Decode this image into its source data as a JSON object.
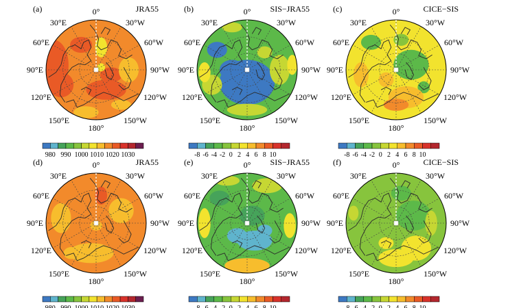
{
  "colors": {
    "scale": [
      "#3d79c2",
      "#5fb4cd",
      "#46a35a",
      "#5cb949",
      "#87c43d",
      "#c6d733",
      "#f2e32e",
      "#f7bd2d",
      "#f28a2b",
      "#e95a26",
      "#d8322b",
      "#b3272e",
      "#6b1e4f"
    ],
    "outline": "#000000",
    "coast": "#2a2a2a"
  },
  "longitude_labels": {
    "lon0": "0°",
    "lon30w": "30°W",
    "lon60w": "60°W",
    "lon90w": "90°W",
    "lon120w": "120°W",
    "lon150w": "150°W",
    "lon180": "180°",
    "lon150e": "150°E",
    "lon120e": "120°E",
    "lon90e": "90°E",
    "lon60e": "60°E",
    "lon30e": "30°E"
  },
  "colorbar_slp": {
    "ticks": [
      "980",
      "990",
      "1000",
      "1010",
      "1020",
      "1030"
    ]
  },
  "colorbar_diff": {
    "ticks": [
      "-8",
      "-6",
      "-4",
      "-2",
      "0",
      "2",
      "4",
      "6",
      "8",
      "10"
    ]
  },
  "panels": [
    {
      "letter": "(a)",
      "title": "JRA55",
      "bar": "slp",
      "field": {
        "bg": 8,
        "blobs": [
          [
            -0.85,
            -0.1,
            0.3,
            0.5,
            9
          ],
          [
            -0.7,
            0.3,
            0.25,
            0.25,
            9
          ],
          [
            -0.3,
            -0.5,
            0.22,
            0.16,
            9
          ],
          [
            0.2,
            0.4,
            0.4,
            0.2,
            9
          ],
          [
            0.3,
            0.1,
            0.22,
            0.15,
            9
          ],
          [
            0.65,
            0.0,
            0.2,
            0.25,
            7
          ],
          [
            0.1,
            -0.45,
            0.12,
            0.2,
            6
          ],
          [
            0.1,
            -0.05,
            0.08,
            0.08,
            6
          ],
          [
            -0.2,
            0.85,
            0.25,
            0.12,
            7
          ],
          [
            0.5,
            0.7,
            0.2,
            0.1,
            7
          ]
        ]
      }
    },
    {
      "letter": "(b)",
      "title": "SIS−JRA55",
      "bar": "diff",
      "field": {
        "bg": 3,
        "blobs": [
          [
            -0.6,
            -0.4,
            0.2,
            0.16,
            0
          ],
          [
            0.0,
            0.25,
            0.55,
            0.45,
            0
          ],
          [
            -0.3,
            0.0,
            0.25,
            0.2,
            0
          ],
          [
            0.65,
            0.0,
            0.2,
            0.3,
            5
          ],
          [
            0.35,
            -0.35,
            0.15,
            0.12,
            5
          ],
          [
            -0.7,
            0.3,
            0.2,
            0.2,
            5
          ],
          [
            0.0,
            0.8,
            0.4,
            0.12,
            5
          ],
          [
            -0.85,
            0.05,
            0.12,
            0.2,
            6
          ],
          [
            0.9,
            -0.1,
            0.1,
            0.2,
            6
          ],
          [
            -0.3,
            -0.85,
            0.2,
            0.1,
            5
          ]
        ]
      }
    },
    {
      "letter": "(c)",
      "title": "CICE−SIS",
      "bar": "diff",
      "field": {
        "bg": 6,
        "blobs": [
          [
            0.3,
            -0.1,
            0.35,
            0.3,
            3
          ],
          [
            0.1,
            -0.6,
            0.15,
            0.12,
            4
          ],
          [
            -0.5,
            -0.55,
            0.2,
            0.15,
            3
          ],
          [
            0.55,
            0.35,
            0.12,
            0.12,
            3
          ],
          [
            0.2,
            0.55,
            0.35,
            0.22,
            7
          ],
          [
            0.0,
            0.7,
            0.25,
            0.12,
            8
          ],
          [
            -0.7,
            0.1,
            0.15,
            0.25,
            7
          ],
          [
            -0.2,
            0.2,
            0.15,
            0.15,
            7
          ]
        ]
      }
    },
    {
      "letter": "(d)",
      "title": "JRA55",
      "bar": "slp",
      "field": {
        "bg": 8,
        "blobs": [
          [
            -0.7,
            -0.1,
            0.2,
            0.3,
            7
          ],
          [
            0.1,
            -0.55,
            0.12,
            0.18,
            9
          ],
          [
            -0.1,
            0.6,
            0.45,
            0.2,
            7
          ],
          [
            0.5,
            -0.25,
            0.25,
            0.25,
            7
          ],
          [
            -0.5,
            0.6,
            0.15,
            0.12,
            7
          ],
          [
            0.0,
            0.05,
            0.12,
            0.1,
            7
          ]
        ]
      }
    },
    {
      "letter": "(e)",
      "title": "SIS−JRA55",
      "bar": "diff",
      "field": {
        "bg": 3,
        "blobs": [
          [
            0.15,
            0.35,
            0.35,
            0.2,
            1
          ],
          [
            -0.2,
            0.25,
            0.2,
            0.15,
            1
          ],
          [
            0.35,
            0.15,
            0.15,
            0.12,
            1
          ],
          [
            -0.55,
            -0.5,
            0.2,
            0.15,
            2
          ],
          [
            0.1,
            -0.15,
            0.25,
            0.2,
            2
          ],
          [
            0.0,
            0.85,
            0.45,
            0.15,
            7
          ],
          [
            -0.85,
            0.0,
            0.12,
            0.3,
            6
          ],
          [
            0.85,
            0.05,
            0.12,
            0.25,
            6
          ],
          [
            0.4,
            -0.75,
            0.3,
            0.15,
            5
          ],
          [
            -0.4,
            -0.85,
            0.25,
            0.1,
            5
          ]
        ]
      }
    },
    {
      "letter": "(f)",
      "title": "CICE−SIS",
      "bar": "diff",
      "field": {
        "bg": 4,
        "blobs": [
          [
            0.35,
            -0.15,
            0.35,
            0.3,
            3
          ],
          [
            0.1,
            -0.6,
            0.2,
            0.15,
            3
          ],
          [
            0.4,
            0.5,
            0.3,
            0.25,
            6
          ],
          [
            0.0,
            0.7,
            0.35,
            0.18,
            6
          ],
          [
            -0.2,
            0.4,
            0.15,
            0.12,
            6
          ],
          [
            0.7,
            0.0,
            0.12,
            0.25,
            5
          ],
          [
            -0.85,
            -0.2,
            0.1,
            0.15,
            5
          ]
        ]
      }
    }
  ]
}
